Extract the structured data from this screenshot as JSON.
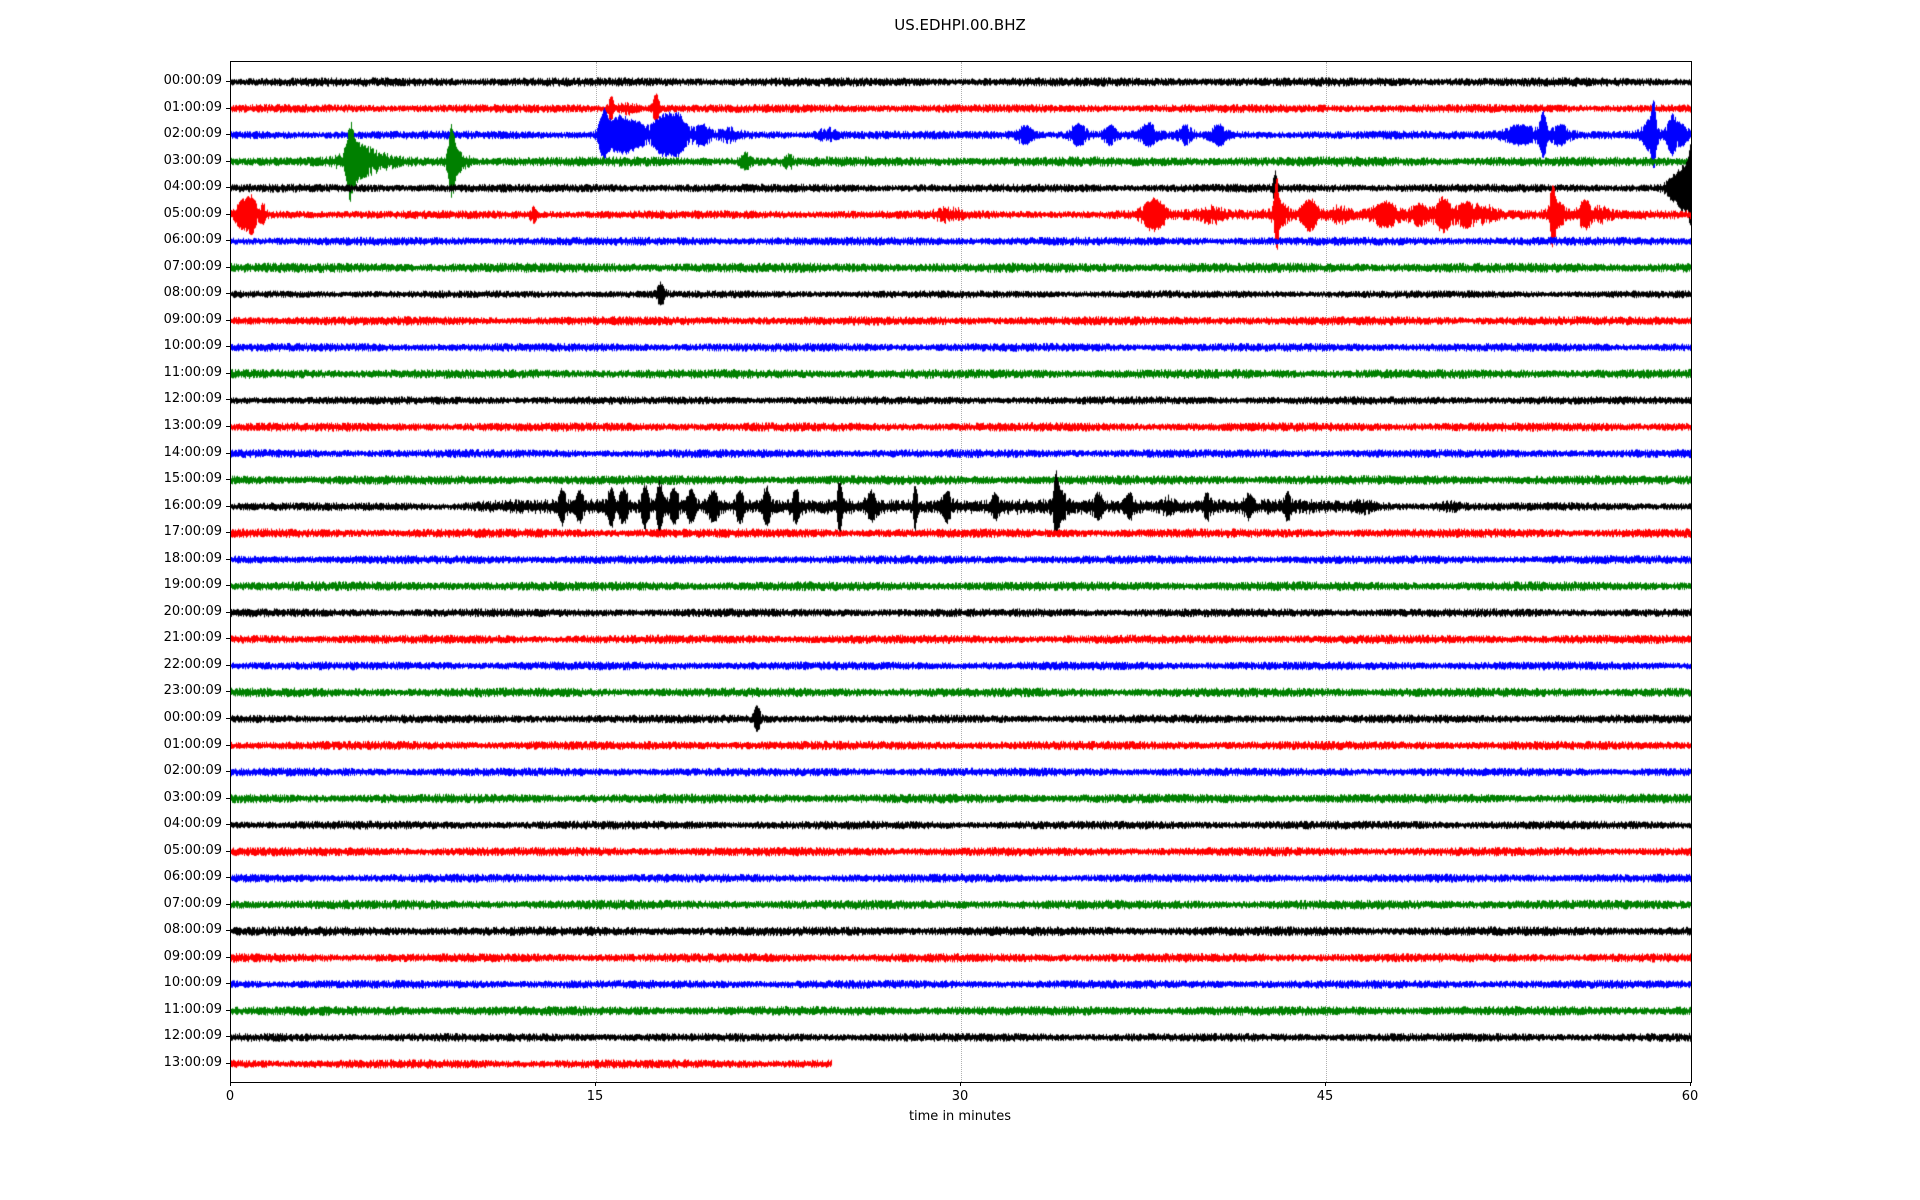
{
  "title": "US.EDHPI.00.BHZ",
  "xlabel": "time in minutes",
  "colors": {
    "trace_cycle": [
      "#000000",
      "#ff0000",
      "#0000ff",
      "#008000"
    ],
    "grid": "#b0b0b0",
    "axis": "#000000"
  },
  "chart_data": {
    "type": "line",
    "subtype": "helicorder-dayplot",
    "title": "US.EDHPI.00.BHZ",
    "xlabel": "time in minutes",
    "x_ticks": [
      0,
      15,
      30,
      45,
      60
    ],
    "x_range_minutes": [
      0,
      60
    ],
    "gridlines_at_minutes": [
      15,
      30,
      45
    ],
    "minutes_per_row": 60,
    "events_format": "t=center minute, w=sigma minutes, a=half-amplitude px; band=sustained elevated amplitude; noise=background half-amplitude px; end_min=trace data ends at this minute",
    "rows": [
      {
        "label": "00:00:09",
        "color": "#000000",
        "noise": 4.2,
        "events": []
      },
      {
        "label": "01:00:09",
        "color": "#ff0000",
        "noise": 4.0,
        "events": [
          {
            "t": 15.6,
            "w": 0.08,
            "a": 11
          },
          {
            "t": 17.45,
            "w": 0.1,
            "a": 13
          },
          {
            "t": 16.3,
            "w": 0.3,
            "a": 4
          }
        ]
      },
      {
        "label": "02:00:09",
        "color": "#0000ff",
        "noise": 4.0,
        "events": [
          {
            "t": 15.3,
            "w": 0.15,
            "a": 20
          },
          {
            "t": 15.9,
            "w": 0.35,
            "a": 14
          },
          {
            "t": 16.6,
            "w": 0.4,
            "a": 10
          },
          {
            "t": 17.8,
            "w": 0.35,
            "a": 18
          },
          {
            "t": 18.4,
            "w": 0.25,
            "a": 14
          },
          {
            "t": 19.3,
            "w": 0.3,
            "a": 8
          },
          {
            "t": 20.5,
            "w": 0.3,
            "a": 5
          },
          {
            "t": 24.5,
            "w": 0.3,
            "a": 5
          },
          {
            "t": 32.6,
            "w": 0.3,
            "a": 7
          },
          {
            "t": 34.8,
            "w": 0.25,
            "a": 9
          },
          {
            "t": 36.1,
            "w": 0.2,
            "a": 7
          },
          {
            "t": 37.7,
            "w": 0.25,
            "a": 9
          },
          {
            "t": 39.2,
            "w": 0.2,
            "a": 7
          },
          {
            "t": 40.6,
            "w": 0.25,
            "a": 8
          },
          {
            "t": 53.0,
            "w": 0.6,
            "a": 8
          },
          {
            "t": 53.9,
            "w": 0.1,
            "a": 20
          },
          {
            "t": 54.6,
            "w": 0.3,
            "a": 8
          },
          {
            "t": 58.3,
            "w": 0.25,
            "a": 12
          },
          {
            "t": 58.45,
            "w": 0.08,
            "a": 22
          },
          {
            "t": 59.2,
            "w": 0.15,
            "a": 16
          },
          {
            "t": 59.6,
            "w": 0.2,
            "a": 8
          }
        ]
      },
      {
        "label": "03:00:09",
        "color": "#008000",
        "noise": 4.6,
        "events": [
          {
            "t": 4.9,
            "w": 0.12,
            "a": 26
          },
          {
            "t": 5.15,
            "w": 0.45,
            "a": 12
          },
          {
            "t": 5.9,
            "w": 0.6,
            "a": 5
          },
          {
            "t": 9.05,
            "w": 0.1,
            "a": 28
          },
          {
            "t": 9.3,
            "w": 0.3,
            "a": 8
          },
          {
            "t": 21.1,
            "w": 0.15,
            "a": 7
          },
          {
            "t": 22.9,
            "w": 0.12,
            "a": 5
          }
        ]
      },
      {
        "label": "04:00:09",
        "color": "#000000",
        "noise": 4.0,
        "events": [
          {
            "t": 42.9,
            "w": 0.06,
            "a": 15
          },
          {
            "t": 59.3,
            "w": 0.25,
            "a": 10
          },
          {
            "t": 59.75,
            "w": 0.2,
            "a": 20
          },
          {
            "t": 59.95,
            "w": 0.06,
            "a": 30
          }
        ]
      },
      {
        "label": "05:00:09",
        "color": "#ff0000",
        "noise": 4.0,
        "band": {
          "start": 37.5,
          "end": 56,
          "a": 1.5
        },
        "events": [
          {
            "t": 0.45,
            "w": 0.2,
            "a": 12
          },
          {
            "t": 0.85,
            "w": 0.15,
            "a": 16
          },
          {
            "t": 1.3,
            "w": 0.1,
            "a": 8
          },
          {
            "t": 12.4,
            "w": 0.1,
            "a": 6
          },
          {
            "t": 29.5,
            "w": 0.4,
            "a": 5
          },
          {
            "t": 37.9,
            "w": 0.35,
            "a": 12
          },
          {
            "t": 40.3,
            "w": 0.3,
            "a": 6
          },
          {
            "t": 42.95,
            "w": 0.07,
            "a": 28
          },
          {
            "t": 43.1,
            "w": 0.3,
            "a": 8
          },
          {
            "t": 44.3,
            "w": 0.25,
            "a": 13
          },
          {
            "t": 45.5,
            "w": 0.3,
            "a": 6
          },
          {
            "t": 47.4,
            "w": 0.4,
            "a": 9
          },
          {
            "t": 48.8,
            "w": 0.3,
            "a": 7
          },
          {
            "t": 49.8,
            "w": 0.25,
            "a": 13
          },
          {
            "t": 50.7,
            "w": 0.3,
            "a": 8
          },
          {
            "t": 51.5,
            "w": 0.4,
            "a": 6
          },
          {
            "t": 54.3,
            "w": 0.08,
            "a": 24
          },
          {
            "t": 54.5,
            "w": 0.3,
            "a": 9
          },
          {
            "t": 55.6,
            "w": 0.2,
            "a": 10
          },
          {
            "t": 56.2,
            "w": 0.3,
            "a": 5
          }
        ]
      },
      {
        "label": "06:00:09",
        "color": "#0000ff",
        "noise": 4.0,
        "events": []
      },
      {
        "label": "07:00:09",
        "color": "#008000",
        "noise": 4.6,
        "events": []
      },
      {
        "label": "08:00:09",
        "color": "#000000",
        "noise": 3.6,
        "events": [
          {
            "t": 17.65,
            "w": 0.12,
            "a": 9
          }
        ]
      },
      {
        "label": "09:00:09",
        "color": "#ff0000",
        "noise": 4.2,
        "events": []
      },
      {
        "label": "10:00:09",
        "color": "#0000ff",
        "noise": 4.0,
        "events": []
      },
      {
        "label": "11:00:09",
        "color": "#008000",
        "noise": 4.4,
        "events": []
      },
      {
        "label": "12:00:09",
        "color": "#000000",
        "noise": 3.8,
        "events": []
      },
      {
        "label": "13:00:09",
        "color": "#ff0000",
        "noise": 4.2,
        "events": []
      },
      {
        "label": "14:00:09",
        "color": "#0000ff",
        "noise": 4.0,
        "events": []
      },
      {
        "label": "15:00:09",
        "color": "#008000",
        "noise": 4.4,
        "events": []
      },
      {
        "label": "16:00:09",
        "color": "#000000",
        "noise": 4.0,
        "band": {
          "start": 11,
          "end": 44,
          "a": 4
        },
        "events": [
          {
            "t": 13.6,
            "w": 0.1,
            "a": 13
          },
          {
            "t": 14.3,
            "w": 0.12,
            "a": 11
          },
          {
            "t": 15.6,
            "w": 0.1,
            "a": 15
          },
          {
            "t": 16.1,
            "w": 0.15,
            "a": 12
          },
          {
            "t": 17.0,
            "w": 0.12,
            "a": 17
          },
          {
            "t": 17.6,
            "w": 0.1,
            "a": 21
          },
          {
            "t": 18.2,
            "w": 0.15,
            "a": 14
          },
          {
            "t": 18.9,
            "w": 0.12,
            "a": 13
          },
          {
            "t": 19.8,
            "w": 0.15,
            "a": 11
          },
          {
            "t": 20.9,
            "w": 0.12,
            "a": 12
          },
          {
            "t": 22.0,
            "w": 0.12,
            "a": 14
          },
          {
            "t": 23.2,
            "w": 0.12,
            "a": 12
          },
          {
            "t": 25.0,
            "w": 0.08,
            "a": 21
          },
          {
            "t": 26.3,
            "w": 0.15,
            "a": 10
          },
          {
            "t": 28.1,
            "w": 0.07,
            "a": 19
          },
          {
            "t": 29.4,
            "w": 0.15,
            "a": 11
          },
          {
            "t": 31.4,
            "w": 0.12,
            "a": 8
          },
          {
            "t": 33.9,
            "w": 0.07,
            "a": 23
          },
          {
            "t": 34.05,
            "w": 0.2,
            "a": 10
          },
          {
            "t": 35.6,
            "w": 0.15,
            "a": 8
          },
          {
            "t": 36.9,
            "w": 0.12,
            "a": 9
          },
          {
            "t": 38.5,
            "w": 0.2,
            "a": 6
          },
          {
            "t": 40.1,
            "w": 0.12,
            "a": 8
          },
          {
            "t": 41.8,
            "w": 0.15,
            "a": 7
          },
          {
            "t": 43.4,
            "w": 0.1,
            "a": 9
          },
          {
            "t": 46.5,
            "w": 0.3,
            "a": 4
          },
          {
            "t": 50.0,
            "w": 0.4,
            "a": 3
          }
        ]
      },
      {
        "label": "17:00:09",
        "color": "#ff0000",
        "noise": 4.3,
        "events": []
      },
      {
        "label": "18:00:09",
        "color": "#0000ff",
        "noise": 4.0,
        "events": []
      },
      {
        "label": "19:00:09",
        "color": "#008000",
        "noise": 4.4,
        "events": []
      },
      {
        "label": "20:00:09",
        "color": "#000000",
        "noise": 4.0,
        "events": []
      },
      {
        "label": "21:00:09",
        "color": "#ff0000",
        "noise": 4.2,
        "events": []
      },
      {
        "label": "22:00:09",
        "color": "#0000ff",
        "noise": 4.0,
        "events": []
      },
      {
        "label": "23:00:09",
        "color": "#008000",
        "noise": 4.4,
        "events": []
      },
      {
        "label": "00:00:09",
        "color": "#000000",
        "noise": 4.0,
        "events": [
          {
            "t": 21.6,
            "w": 0.1,
            "a": 11
          }
        ]
      },
      {
        "label": "01:00:09",
        "color": "#ff0000",
        "noise": 4.2,
        "events": []
      },
      {
        "label": "02:00:09",
        "color": "#0000ff",
        "noise": 4.0,
        "events": []
      },
      {
        "label": "03:00:09",
        "color": "#008000",
        "noise": 4.4,
        "events": []
      },
      {
        "label": "04:00:09",
        "color": "#000000",
        "noise": 4.0,
        "events": []
      },
      {
        "label": "05:00:09",
        "color": "#ff0000",
        "noise": 4.2,
        "events": []
      },
      {
        "label": "06:00:09",
        "color": "#0000ff",
        "noise": 4.0,
        "events": []
      },
      {
        "label": "07:00:09",
        "color": "#008000",
        "noise": 4.4,
        "events": []
      },
      {
        "label": "08:00:09",
        "color": "#000000",
        "noise": 4.4,
        "events": []
      },
      {
        "label": "09:00:09",
        "color": "#ff0000",
        "noise": 4.2,
        "events": []
      },
      {
        "label": "10:00:09",
        "color": "#0000ff",
        "noise": 4.0,
        "events": []
      },
      {
        "label": "11:00:09",
        "color": "#008000",
        "noise": 4.4,
        "events": []
      },
      {
        "label": "12:00:09",
        "color": "#000000",
        "noise": 4.0,
        "events": []
      },
      {
        "label": "13:00:09",
        "color": "#ff0000",
        "noise": 4.2,
        "end_min": 24.7,
        "events": []
      }
    ]
  }
}
